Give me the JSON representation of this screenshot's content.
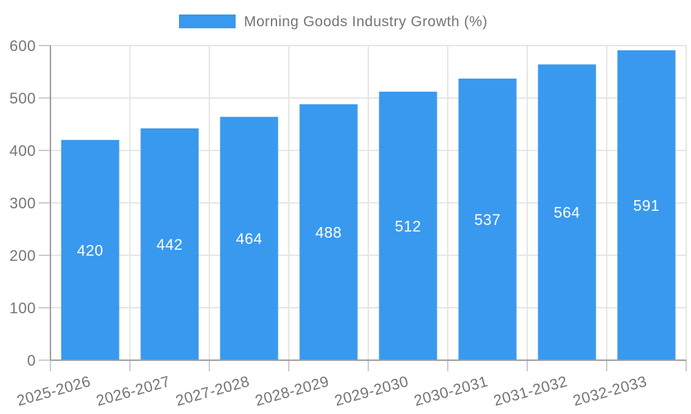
{
  "chart_data": {
    "type": "bar",
    "title": "Morning Goods Industry Growth (%)",
    "categories": [
      "2025-2026",
      "2026-2027",
      "2027-2028",
      "2028-2029",
      "2029-2030",
      "2030-2031",
      "2031-2032",
      "2032-2033"
    ],
    "values": [
      420,
      442,
      464,
      488,
      512,
      537,
      564,
      591
    ],
    "series": [
      {
        "name": "Morning Goods Industry Growth (%)",
        "values": [
          420,
          442,
          464,
          488,
          512,
          537,
          564,
          591
        ]
      }
    ],
    "xlabel": "",
    "ylabel": "",
    "ylim": [
      0,
      600
    ],
    "ytick_step": 100,
    "yticks": [
      0,
      100,
      200,
      300,
      400,
      500,
      600
    ],
    "grid": true,
    "legend_position": "top-center",
    "value_label_position": "inside-center",
    "bar_color": "#3999EE",
    "value_label_color": "#FFFFFF",
    "axis_text_color": "#757575",
    "gridline_color": "#E6E6E6",
    "tick_color": "#CCCCCC",
    "axis_line_color": "#9E9E9E",
    "background_color": "#FFFFFF"
  }
}
